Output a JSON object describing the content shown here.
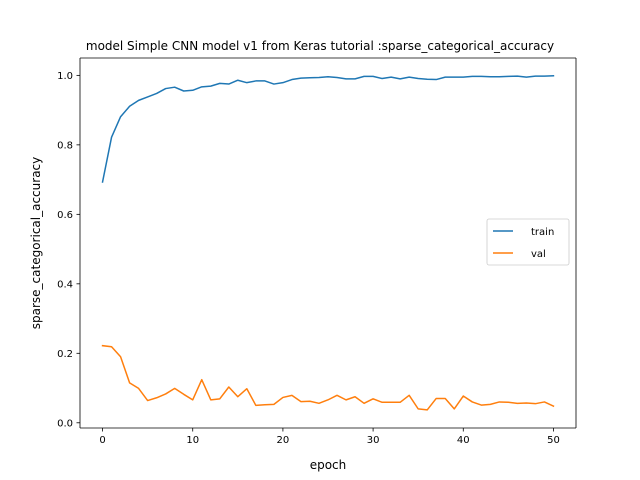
{
  "chart_data": {
    "type": "line",
    "title": "model Simple CNN model v1 from Keras tutorial :sparse_categorical_accuracy",
    "xlabel": "epoch",
    "ylabel": "sparse_categorical_accuracy",
    "xlim": [
      -2.5,
      52.5
    ],
    "ylim": [
      -0.015,
      1.05
    ],
    "xticks": [
      0,
      10,
      20,
      30,
      40,
      50
    ],
    "yticks": [
      0.0,
      0.2,
      0.4,
      0.6,
      0.8,
      1.0
    ],
    "xtick_labels": [
      "0",
      "10",
      "20",
      "30",
      "40",
      "50"
    ],
    "ytick_labels": [
      "0.0",
      "0.2",
      "0.4",
      "0.6",
      "0.8",
      "1.0"
    ],
    "grid": false,
    "legend_position": "center-right",
    "x": [
      0,
      1,
      2,
      3,
      4,
      5,
      6,
      7,
      8,
      9,
      10,
      11,
      12,
      13,
      14,
      15,
      16,
      17,
      18,
      19,
      20,
      21,
      22,
      23,
      24,
      25,
      26,
      27,
      28,
      29,
      30,
      31,
      32,
      33,
      34,
      35,
      36,
      37,
      38,
      39,
      40,
      41,
      42,
      43,
      44,
      45,
      46,
      47,
      48,
      49,
      50
    ],
    "series": [
      {
        "name": "train",
        "color": "#1f77b4",
        "values": [
          0.693,
          0.822,
          0.881,
          0.911,
          0.928,
          0.938,
          0.948,
          0.962,
          0.966,
          0.955,
          0.957,
          0.967,
          0.969,
          0.977,
          0.975,
          0.986,
          0.979,
          0.984,
          0.984,
          0.975,
          0.979,
          0.988,
          0.992,
          0.993,
          0.994,
          0.996,
          0.994,
          0.99,
          0.99,
          0.997,
          0.997,
          0.991,
          0.995,
          0.99,
          0.995,
          0.991,
          0.989,
          0.988,
          0.995,
          0.995,
          0.995,
          0.997,
          0.997,
          0.996,
          0.996,
          0.997,
          0.998,
          0.995,
          0.998,
          0.998,
          0.999
        ]
      },
      {
        "name": "val",
        "color": "#ff7f0e",
        "values": [
          0.222,
          0.219,
          0.19,
          0.115,
          0.099,
          0.064,
          0.072,
          0.083,
          0.099,
          0.082,
          0.066,
          0.124,
          0.066,
          0.069,
          0.103,
          0.075,
          0.098,
          0.05,
          0.052,
          0.053,
          0.073,
          0.079,
          0.061,
          0.062,
          0.056,
          0.066,
          0.079,
          0.066,
          0.075,
          0.056,
          0.069,
          0.059,
          0.059,
          0.059,
          0.079,
          0.04,
          0.037,
          0.07,
          0.07,
          0.04,
          0.077,
          0.06,
          0.051,
          0.053,
          0.06,
          0.059,
          0.056,
          0.057,
          0.055,
          0.06,
          0.048
        ]
      }
    ]
  }
}
